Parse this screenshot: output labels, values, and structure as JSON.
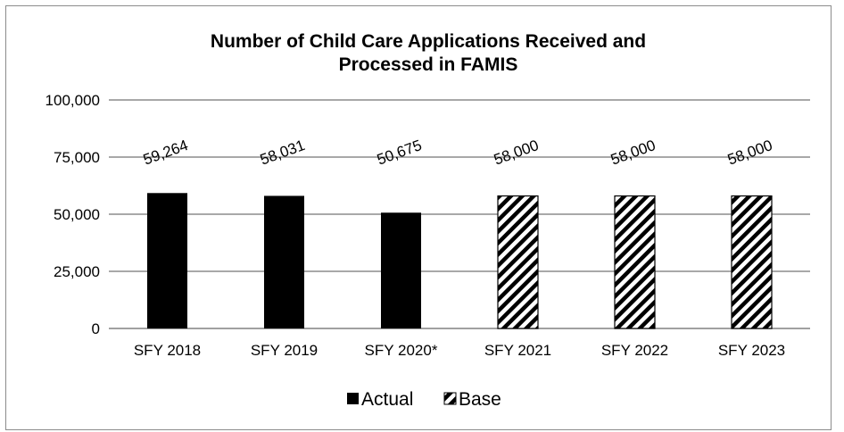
{
  "chart_data": {
    "type": "bar",
    "title_lines": [
      "Number of Child Care Applications Received and",
      "Processed in FAMIS"
    ],
    "categories": [
      "SFY 2018",
      "SFY 2019",
      "SFY 2020*",
      "SFY 2021",
      "SFY 2022",
      "SFY 2023"
    ],
    "series": [
      {
        "name": "Actual",
        "values": [
          59264,
          58031,
          50675,
          null,
          null,
          null
        ],
        "data_labels": [
          "59,264",
          "58,031",
          "50,675",
          "",
          "",
          ""
        ],
        "color": "#000000",
        "pattern": "solid"
      },
      {
        "name": "Base",
        "values": [
          null,
          null,
          null,
          58000,
          58000,
          58000
        ],
        "data_labels": [
          "",
          "",
          "",
          "58,000",
          "58,000",
          "58,000"
        ],
        "color": "#000000",
        "pattern": "diagonal-hatch"
      }
    ],
    "ylim": [
      0,
      100000
    ],
    "yticks": [
      0,
      25000,
      50000,
      75000,
      100000
    ],
    "ytick_labels": [
      "0",
      "25,000",
      "50,000",
      "75,000",
      "100,000"
    ],
    "grid": true,
    "legend": {
      "position": "bottom",
      "entries": [
        "Actual",
        "Base"
      ]
    },
    "xlabel": "",
    "ylabel": ""
  }
}
